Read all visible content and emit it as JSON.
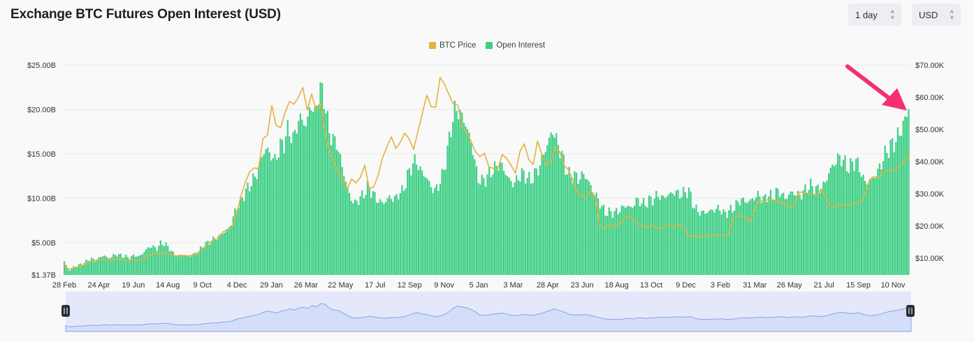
{
  "header": {
    "title": "Exchange BTC Futures Open Interest (USD)",
    "interval_label": "1 day",
    "currency_label": "USD"
  },
  "colors": {
    "open_interest": "#3ecf85",
    "btc_price": "#e5b13f",
    "arrow": "#f5306e",
    "navigator_fill": "#d5def8",
    "navigator_line": "#8aa0e6"
  },
  "icons": {
    "select_chevron": "chevron-up-down-icon",
    "navigator_handle": "pause-handle-icon",
    "annotation": "arrow-icon"
  },
  "chart_data": {
    "type": "bar+line",
    "title": "Exchange BTC Futures Open Interest (USD)",
    "legend": {
      "position": "top-center",
      "items": [
        {
          "name": "BTC Price",
          "color": "#e5b13f"
        },
        {
          "name": "Open Interest",
          "color": "#3ecf85"
        }
      ]
    },
    "x_tick_labels": [
      "28 Feb",
      "24 Apr",
      "19 Jun",
      "14 Aug",
      "9 Oct",
      "4 Dec",
      "29 Jan",
      "26 Mar",
      "22 May",
      "17 Jul",
      "12 Sep",
      "9 Nov",
      "5 Jan",
      "3 Mar",
      "28 Apr",
      "23 Jun",
      "18 Aug",
      "13 Oct",
      "9 Dec",
      "3 Feb",
      "31 Mar",
      "26 May",
      "21 Jul",
      "15 Sep",
      "10 Nov"
    ],
    "y_left": {
      "tick_values": [
        1.37,
        5,
        10,
        15,
        20,
        25
      ],
      "tick_labels": [
        "$1.37B",
        "$5.00B",
        "$10.00B",
        "$15.00B",
        "$20.00B",
        "$25.00B"
      ],
      "range": [
        1.37,
        25
      ],
      "unit": "B USD"
    },
    "y_right": {
      "tick_values": [
        10,
        20,
        30,
        40,
        50,
        60,
        70
      ],
      "tick_labels": [
        "$10.00K",
        "$20.00K",
        "$30.00K",
        "$40.00K",
        "$50.00K",
        "$60.00K",
        "$70.00K"
      ],
      "range": [
        4.8,
        70
      ],
      "unit": "K USD"
    },
    "grid": true,
    "series": [
      {
        "name": "Open Interest",
        "type": "bar",
        "axis": "left",
        "unit": "B USD",
        "values": [
          2.9,
          1.8,
          2.2,
          2.4,
          2.6,
          2.9,
          3.2,
          3.0,
          3.3,
          3.6,
          3.2,
          3.5,
          3.7,
          3.5,
          3.4,
          3.3,
          3.6,
          3.4,
          3.9,
          4.4,
          4.6,
          4.3,
          5.0,
          4.8,
          4.3,
          3.6,
          3.5,
          3.7,
          3.4,
          3.6,
          3.8,
          4.3,
          4.8,
          5.1,
          5.4,
          5.6,
          6.1,
          6.3,
          7.2,
          8.8,
          9.5,
          10.6,
          11.3,
          12.1,
          13.0,
          14.9,
          15.6,
          14.8,
          14.2,
          15.8,
          16.3,
          17.9,
          16.5,
          18.5,
          19.1,
          18.0,
          20.7,
          19.4,
          22.4,
          21.6,
          18.0,
          16.6,
          16.2,
          13.9,
          11.9,
          10.1,
          9.4,
          9.9,
          10.4,
          11.2,
          10.7,
          9.9,
          9.5,
          9.6,
          10.2,
          9.8,
          10.5,
          10.8,
          12.4,
          13.7,
          14.3,
          13.1,
          12.6,
          11.7,
          10.8,
          11.3,
          12.6,
          14.9,
          18.2,
          20.2,
          19.5,
          18.7,
          17.2,
          15.2,
          12.2,
          11.9,
          12.3,
          13.0,
          13.4,
          14.0,
          13.2,
          12.2,
          11.6,
          12.1,
          12.8,
          12.5,
          11.9,
          12.8,
          13.4,
          15.0,
          16.2,
          17.7,
          16.4,
          15.1,
          13.4,
          12.4,
          12.6,
          12.1,
          12.8,
          12.1,
          11.0,
          10.2,
          9.2,
          8.4,
          8.4,
          8.4,
          8.5,
          9.0,
          9.2,
          8.8,
          9.8,
          9.6,
          9.3,
          9.8,
          9.9,
          10.4,
          10.0,
          10.3,
          10.5,
          10.7,
          10.4,
          10.6,
          10.9,
          9.3,
          8.5,
          8.4,
          8.4,
          8.6,
          8.7,
          8.9,
          8.2,
          8.5,
          8.8,
          9.4,
          9.9,
          9.6,
          9.7,
          10.1,
          10.4,
          9.8,
          10.4,
          10.1,
          10.8,
          10.6,
          9.9,
          10.6,
          10.6,
          10.3,
          10.6,
          11.3,
          11.4,
          11.0,
          11.1,
          11.7,
          13.1,
          13.8,
          14.6,
          14.4,
          13.5,
          13.7,
          14.3,
          13.2,
          11.8,
          11.8,
          12.3,
          13.0,
          14.2,
          15.3,
          15.9,
          16.4,
          17.4,
          18.5,
          20.3
        ]
      },
      {
        "name": "BTC Price",
        "type": "line",
        "axis": "right",
        "unit": "K USD",
        "values": [
          8.6,
          6.5,
          6.8,
          7.2,
          7.5,
          8.3,
          9.0,
          9.2,
          9.5,
          9.7,
          9.4,
          9.6,
          9.8,
          9.6,
          9.3,
          9.2,
          9.5,
          9.3,
          9.9,
          10.6,
          11.3,
          11.5,
          11.8,
          11.6,
          11.2,
          10.8,
          10.6,
          10.9,
          10.7,
          10.9,
          11.3,
          12.5,
          13.7,
          14.9,
          15.8,
          16.2,
          18.2,
          18.9,
          19.5,
          23.4,
          29.1,
          33.5,
          36.8,
          38.0,
          37.8,
          47.1,
          48.2,
          57.4,
          51.2,
          50.5,
          55.3,
          58.7,
          57.8,
          60.0,
          63.0,
          56.0,
          61.0,
          56.0,
          58.0,
          49.3,
          43.0,
          40.0,
          36.7,
          34.5,
          31.4,
          34.6,
          33.4,
          35.1,
          38.9,
          31.7,
          32.1,
          35.8,
          41.2,
          44.6,
          47.7,
          44.1,
          46.0,
          48.8,
          47.1,
          43.8,
          49.4,
          55.1,
          60.6,
          57.1,
          56.9,
          66.2,
          64.0,
          60.8,
          57.9,
          57.6,
          50.6,
          49.1,
          46.2,
          43.0,
          41.5,
          42.6,
          38.4,
          37.9,
          37.6,
          42.2,
          41.0,
          38.9,
          36.4,
          43.1,
          45.5,
          40.7,
          39.1,
          46.4,
          42.0,
          38.8,
          39.7,
          44.8,
          43.0,
          38.8,
          37.4,
          34.0,
          29.9,
          29.4,
          28.7,
          31.1,
          29.0,
          20.4,
          19.1,
          20.2,
          19.8,
          20.2,
          21.2,
          23.0,
          22.9,
          21.4,
          20.2,
          19.8,
          19.4,
          20.3,
          19.5,
          19.3,
          20.0,
          20.3,
          19.7,
          20.5,
          19.4,
          17.1,
          16.9,
          16.5,
          16.8,
          16.9,
          17.2,
          16.8,
          17.3,
          16.9,
          17.2,
          21.8,
          23.2,
          23.1,
          22.6,
          21.4,
          25.0,
          28.0,
          27.5,
          28.2,
          28.1,
          27.7,
          26.9,
          27.1,
          25.8,
          26.8,
          30.4,
          30.6,
          30.0,
          29.9,
          29.5,
          31.5,
          28.9,
          26.1,
          25.9,
          26.6,
          26.7,
          26.2,
          26.9,
          27.0,
          27.6,
          30.3,
          34.5,
          35.4,
          34.9,
          36.5,
          37.5,
          37.0,
          37.8,
          38.7,
          40.5,
          42.8
        ]
      }
    ],
    "annotation": "arrow pointing to latest open interest value"
  }
}
